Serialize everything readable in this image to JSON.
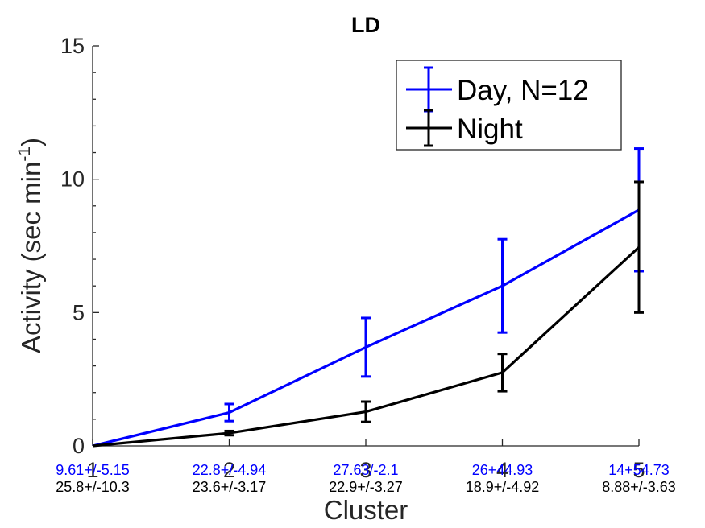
{
  "chart_data": {
    "type": "line",
    "title": "LD",
    "xlabel": "Cluster",
    "ylabel_main": "Activity (sec min",
    "ylabel_sup": "-1",
    "ylabel_close": ")",
    "xlim": [
      1,
      5
    ],
    "ylim": [
      0,
      15
    ],
    "x": [
      1,
      2,
      3,
      4,
      5
    ],
    "x_tick_labels": [
      "1",
      "2",
      "3",
      "4",
      "5"
    ],
    "y_ticks": [
      0,
      5,
      10,
      15
    ],
    "y_tick_labels": [
      "0",
      "5",
      "10",
      "15"
    ],
    "grid": false,
    "legend_position": "top-right",
    "series": [
      {
        "name": "Day, N=12",
        "color": "#0000ff",
        "values": [
          0.0,
          1.25,
          3.7,
          6.0,
          8.85
        ],
        "err": [
          0.0,
          0.32,
          1.1,
          1.75,
          2.3
        ],
        "annotations": [
          "9.61+/-5.15",
          "22.8+/-4.94",
          "27.63/-2.1",
          "26+44.93",
          "14+54.73"
        ]
      },
      {
        "name": "Night",
        "color": "#000000",
        "values": [
          0.0,
          0.48,
          1.28,
          2.75,
          7.45
        ],
        "err": [
          0.0,
          0.08,
          0.38,
          0.7,
          2.45
        ],
        "annotations": [
          "25.8+/-10.3",
          "23.6+/-3.17",
          "22.9+/-3.27",
          "18.9+/-4.92",
          "8.88+/-3.63"
        ]
      }
    ]
  }
}
